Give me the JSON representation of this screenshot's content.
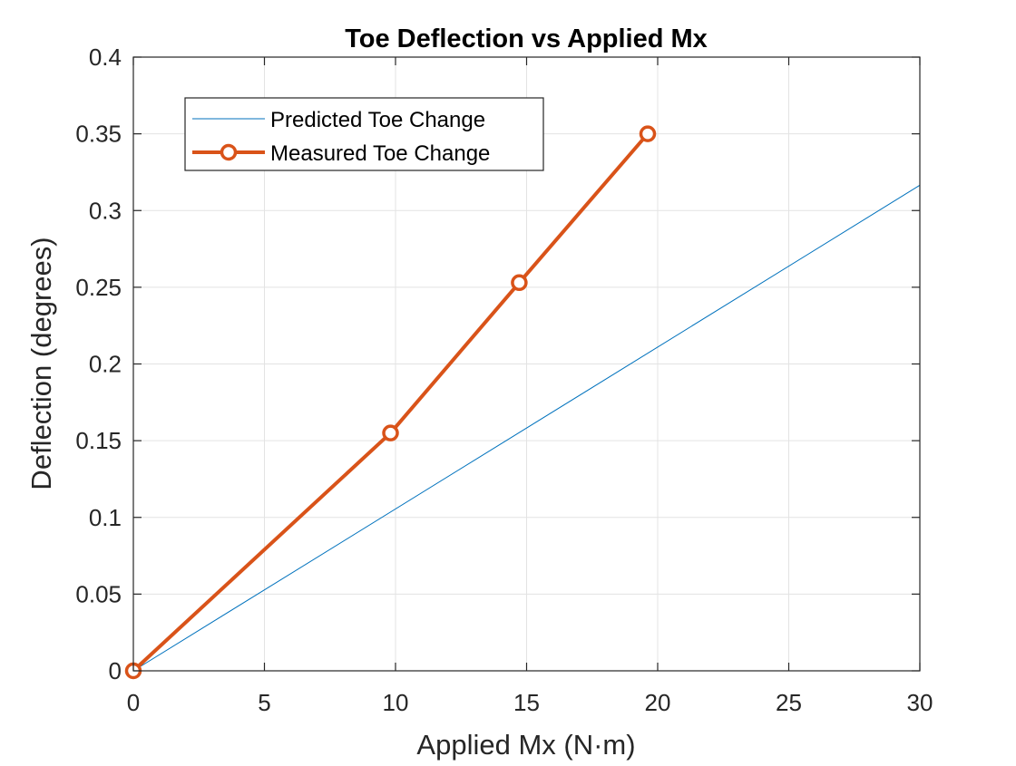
{
  "chart_data": {
    "type": "line",
    "title": "Toe Deflection vs Applied Mx",
    "xlabel": "Applied Mx (N·m)",
    "ylabel": "Deflection (degrees)",
    "xlim": [
      0,
      30
    ],
    "ylim": [
      0,
      0.4
    ],
    "grid": true,
    "legend_position": "top-left",
    "x_ticks": [
      "0",
      "5",
      "10",
      "15",
      "20",
      "25",
      "30"
    ],
    "y_ticks": [
      "0",
      "0.05",
      "0.1",
      "0.15",
      "0.2",
      "0.25",
      "0.3",
      "0.35",
      "0.4"
    ],
    "series": [
      {
        "name": "Predicted Toe Change",
        "color": "#0072BD",
        "marker": "none",
        "x": [
          0,
          30
        ],
        "y": [
          0,
          0.3165
        ]
      },
      {
        "name": "Measured Toe Change",
        "color": "#D95319",
        "marker": "circle",
        "x": [
          0,
          9.81,
          14.72,
          19.62
        ],
        "y": [
          0,
          0.155,
          0.253,
          0.35
        ]
      }
    ]
  }
}
